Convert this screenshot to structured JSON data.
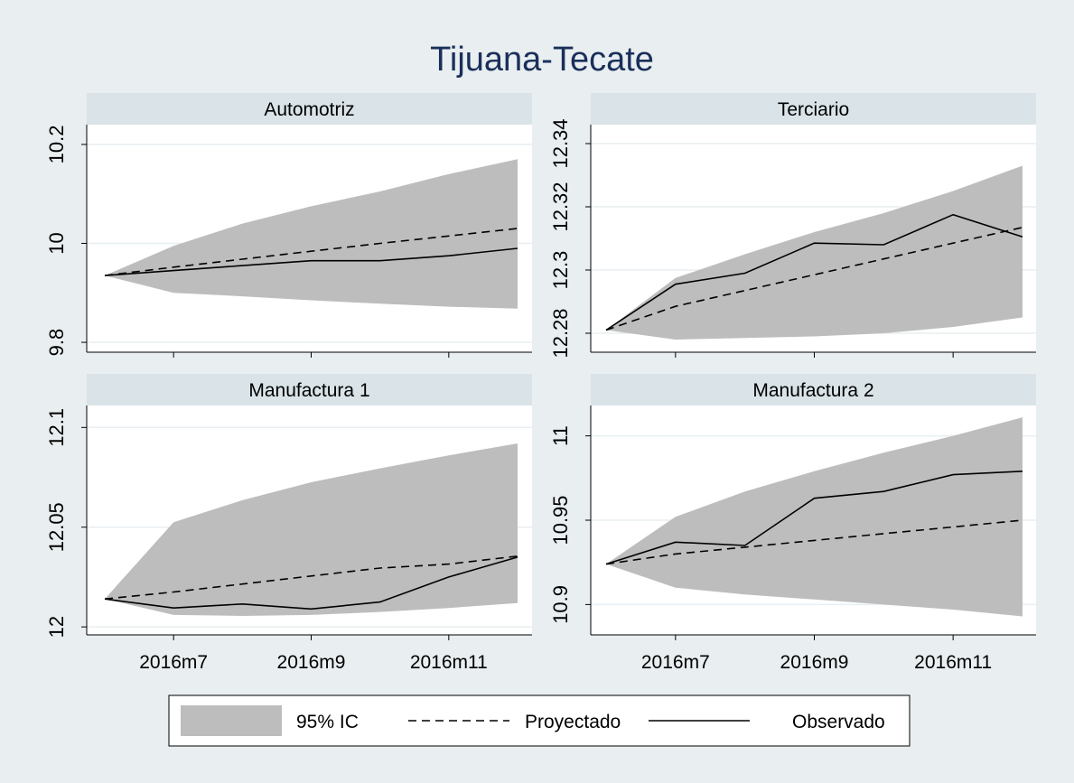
{
  "figure": {
    "title": "Tijuana-Tecate",
    "colors": {
      "background": "#e9eef0",
      "panel_header": "#d9e3e8",
      "title": "#1a2f5a",
      "band": "#bdbdbd",
      "line": "#000000",
      "grid": "#e8eef1"
    }
  },
  "legend": {
    "items": [
      {
        "label": "95% IC",
        "style": "band"
      },
      {
        "label": "Proyectado",
        "style": "dashed"
      },
      {
        "label": "Observado",
        "style": "solid"
      }
    ]
  },
  "chart_data": [
    {
      "type": "area",
      "title": "Automotriz",
      "x": [
        "2016m6",
        "2016m7",
        "2016m8",
        "2016m9",
        "2016m10",
        "2016m11",
        "2016m12"
      ],
      "x_ticks": [
        "2016m7",
        "2016m9",
        "2016m11"
      ],
      "show_x_ticks": false,
      "y_ticks": [
        "9.8",
        "10",
        "10.2"
      ],
      "ylim": [
        9.78,
        10.24
      ],
      "series": [
        {
          "name": "95% IC",
          "kind": "band",
          "lower": [
            9.935,
            9.9,
            9.893,
            9.885,
            9.878,
            9.872,
            9.868
          ],
          "upper": [
            9.935,
            9.995,
            10.04,
            10.075,
            10.105,
            10.14,
            10.17
          ]
        },
        {
          "name": "Proyectado",
          "kind": "dashed",
          "values": [
            9.935,
            9.952,
            9.968,
            9.984,
            10.0,
            10.015,
            10.03
          ]
        },
        {
          "name": "Observado",
          "kind": "solid",
          "values": [
            9.935,
            9.945,
            9.955,
            9.965,
            9.965,
            9.975,
            9.99
          ]
        }
      ]
    },
    {
      "type": "area",
      "title": "Terciario",
      "x": [
        "2016m6",
        "2016m7",
        "2016m8",
        "2016m9",
        "2016m10",
        "2016m11",
        "2016m12"
      ],
      "x_ticks": [
        "2016m7",
        "2016m9",
        "2016m11"
      ],
      "show_x_ticks": false,
      "y_ticks": [
        "12.28",
        "12.3",
        "12.32",
        "12.34"
      ],
      "ylim": [
        12.274,
        12.346
      ],
      "series": [
        {
          "name": "95% IC",
          "kind": "band",
          "lower": [
            12.281,
            12.278,
            12.2785,
            12.279,
            12.28,
            12.282,
            12.285
          ],
          "upper": [
            12.281,
            12.2975,
            12.305,
            12.312,
            12.318,
            12.325,
            12.333
          ]
        },
        {
          "name": "Proyectado",
          "kind": "dashed",
          "values": [
            12.281,
            12.2885,
            12.2935,
            12.2985,
            12.3035,
            12.3085,
            12.3135
          ]
        },
        {
          "name": "Observado",
          "kind": "solid",
          "values": [
            12.281,
            12.2955,
            12.299,
            12.3085,
            12.308,
            12.3175,
            12.3105
          ]
        }
      ]
    },
    {
      "type": "area",
      "title": "Manufactura 1",
      "x": [
        "2016m6",
        "2016m7",
        "2016m8",
        "2016m9",
        "2016m10",
        "2016m11",
        "2016m12"
      ],
      "x_ticks": [
        "2016m7",
        "2016m9",
        "2016m11"
      ],
      "show_x_ticks": true,
      "y_ticks": [
        "12",
        "12.05",
        "12.1"
      ],
      "ylim": [
        11.996,
        12.111
      ],
      "series": [
        {
          "name": "95% IC",
          "kind": "band",
          "lower": [
            12.014,
            12.006,
            12.0055,
            12.006,
            12.0075,
            12.0095,
            12.012
          ],
          "upper": [
            12.014,
            12.0525,
            12.0635,
            12.0725,
            12.0795,
            12.086,
            12.092
          ]
        },
        {
          "name": "Proyectado",
          "kind": "dashed",
          "values": [
            12.014,
            12.0175,
            12.0215,
            12.0255,
            12.0295,
            12.0315,
            12.0355
          ]
        },
        {
          "name": "Observado",
          "kind": "solid",
          "values": [
            12.014,
            12.0095,
            12.0115,
            12.009,
            12.0125,
            12.025,
            12.035
          ]
        }
      ]
    },
    {
      "type": "area",
      "title": "Manufactura 2",
      "x": [
        "2016m6",
        "2016m7",
        "2016m8",
        "2016m9",
        "2016m10",
        "2016m11",
        "2016m12"
      ],
      "x_ticks": [
        "2016m7",
        "2016m9",
        "2016m11"
      ],
      "show_x_ticks": true,
      "y_ticks": [
        "10.9",
        "10.95",
        "11"
      ],
      "ylim": [
        10.882,
        11.018
      ],
      "series": [
        {
          "name": "95% IC",
          "kind": "band",
          "lower": [
            10.924,
            10.91,
            10.906,
            10.903,
            10.9,
            10.897,
            10.893
          ],
          "upper": [
            10.924,
            10.952,
            10.967,
            10.979,
            10.99,
            11.0,
            11.011
          ]
        },
        {
          "name": "Proyectado",
          "kind": "dashed",
          "values": [
            10.924,
            10.93,
            10.934,
            10.938,
            10.942,
            10.946,
            10.95
          ]
        },
        {
          "name": "Observado",
          "kind": "solid",
          "values": [
            10.924,
            10.937,
            10.935,
            10.963,
            10.967,
            10.977,
            10.979
          ]
        }
      ]
    }
  ]
}
